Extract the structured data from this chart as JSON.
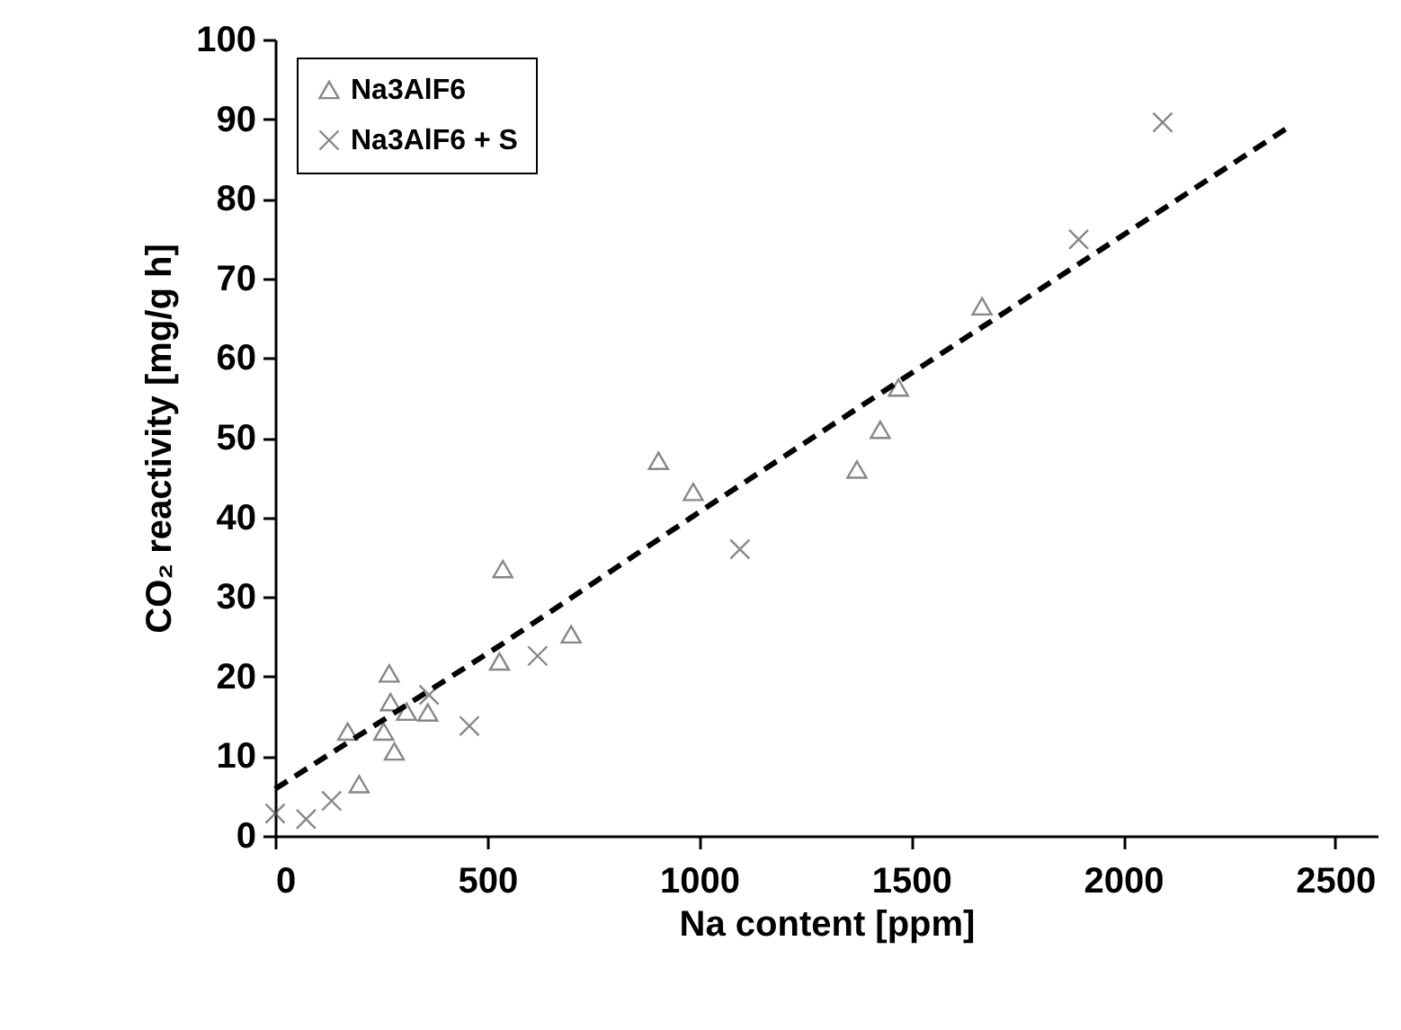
{
  "chart_data": {
    "type": "scatter",
    "xlabel": "Na content [ppm]",
    "ylabel": "CO₂ reactivity [mg/g h]",
    "xlim": [
      0,
      2600
    ],
    "ylim": [
      0,
      100
    ],
    "xticks": [
      0,
      500,
      1000,
      1500,
      2000,
      2500
    ],
    "yticks": [
      0,
      10,
      20,
      30,
      40,
      50,
      60,
      70,
      80,
      90,
      100
    ],
    "grid": false,
    "legend": "top left",
    "series": [
      {
        "name": "Na3AlF6",
        "color": "#555555",
        "marker": "triangle",
        "x": [
          198,
          171,
          269,
          272,
          256,
          281,
          310,
          360,
          529,
          698,
          537,
          904,
          986,
          1427,
          1372,
          1470,
          1667
        ],
        "values": [
          6.5,
          13.1,
          20.4,
          16.8,
          13.1,
          10.6,
          15.6,
          15.5,
          21.9,
          25.3,
          33.5,
          47.1,
          43.2,
          51.0,
          46.0,
          56.3,
          66.5
        ]
      },
      {
        "name": "Na3AlF6 + S",
        "color": "#555555",
        "marker": "cross",
        "x": [
          0,
          73,
          133,
          363,
          458,
          619,
          1096,
          1895,
          2093
        ],
        "values": [
          2.8,
          2.1,
          4.4,
          17.7,
          13.8,
          22.6,
          36.0,
          74.9,
          89.6
        ]
      },
      {
        "type": "line",
        "color": "#000000",
        "marker": "none",
        "line_style": "dashed",
        "x": [
          0,
          527,
          1021,
          1388,
          2390
        ],
        "values": [
          5.9,
          23.8,
          41.4,
          54.2,
          89
        ]
      }
    ]
  }
}
